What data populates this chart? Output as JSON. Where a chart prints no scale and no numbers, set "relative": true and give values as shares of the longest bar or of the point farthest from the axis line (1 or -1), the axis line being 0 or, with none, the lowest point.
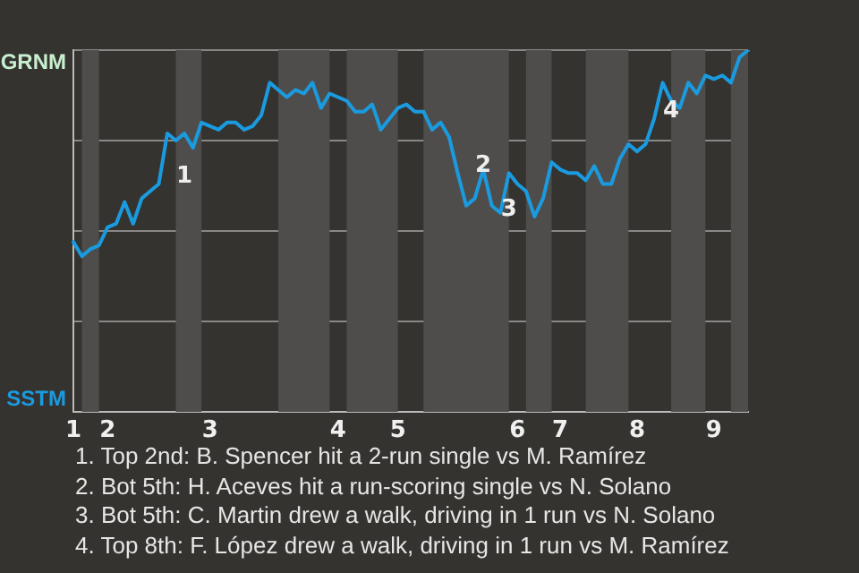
{
  "chart_data": {
    "type": "line",
    "categories": [
      "1",
      null,
      null,
      null,
      "2",
      null,
      null,
      null,
      null,
      null,
      null,
      null,
      null,
      null,
      null,
      null,
      "3",
      null,
      null,
      null,
      null,
      null,
      null,
      null,
      null,
      null,
      null,
      null,
      null,
      null,
      null,
      "4",
      null,
      null,
      null,
      null,
      null,
      null,
      "5",
      null,
      null,
      null,
      null,
      null,
      null,
      null,
      null,
      null,
      null,
      null,
      null,
      null,
      "6",
      null,
      null,
      null,
      null,
      "7",
      null,
      null,
      null,
      null,
      null,
      null,
      null,
      null,
      "8",
      null,
      null,
      null,
      null,
      null,
      null,
      null,
      null,
      "9",
      null,
      null,
      null,
      null
    ],
    "relative": true,
    "series": [
      {
        "color": "#1a9be0",
        "values": [
          0.47,
          0.43,
          0.45,
          0.46,
          0.51,
          0.52,
          0.58,
          0.52,
          0.59,
          0.61,
          0.63,
          0.77,
          0.75,
          0.77,
          0.73,
          0.8,
          0.79,
          0.78,
          0.8,
          0.8,
          0.78,
          0.79,
          0.82,
          0.91,
          0.89,
          0.87,
          0.89,
          0.88,
          0.91,
          0.84,
          0.88,
          0.87,
          0.86,
          0.83,
          0.83,
          0.85,
          0.78,
          0.81,
          0.84,
          0.85,
          0.83,
          0.83,
          0.78,
          0.8,
          0.76,
          0.66,
          0.57,
          0.59,
          0.67,
          0.57,
          0.55,
          0.66,
          0.63,
          0.61,
          0.54,
          0.59,
          0.69,
          0.67,
          0.66,
          0.66,
          0.64,
          0.68,
          0.63,
          0.63,
          0.7,
          0.74,
          0.72,
          0.74,
          0.81,
          0.91,
          0.86,
          0.84,
          0.91,
          0.88,
          0.93,
          0.92,
          0.93,
          0.91,
          0.98,
          1.0
        ]
      }
    ],
    "grid": "y",
    "annotations": [
      "GRNM",
      "SSTM",
      "1",
      "2",
      "3",
      "4",
      "1. Top 2nd: B. Spencer hit a 2-run single vs M. Ramírez",
      "2. Bot 5th: H. Aceves hit a run-scoring single vs N. Solano",
      "3. Bot 5th: C. Martin drew a walk, driving in 1 run vs N. Solano",
      "4. Top 8th: F. López drew a walk, driving in 1 run vs M. Ramírez"
    ]
  }
}
